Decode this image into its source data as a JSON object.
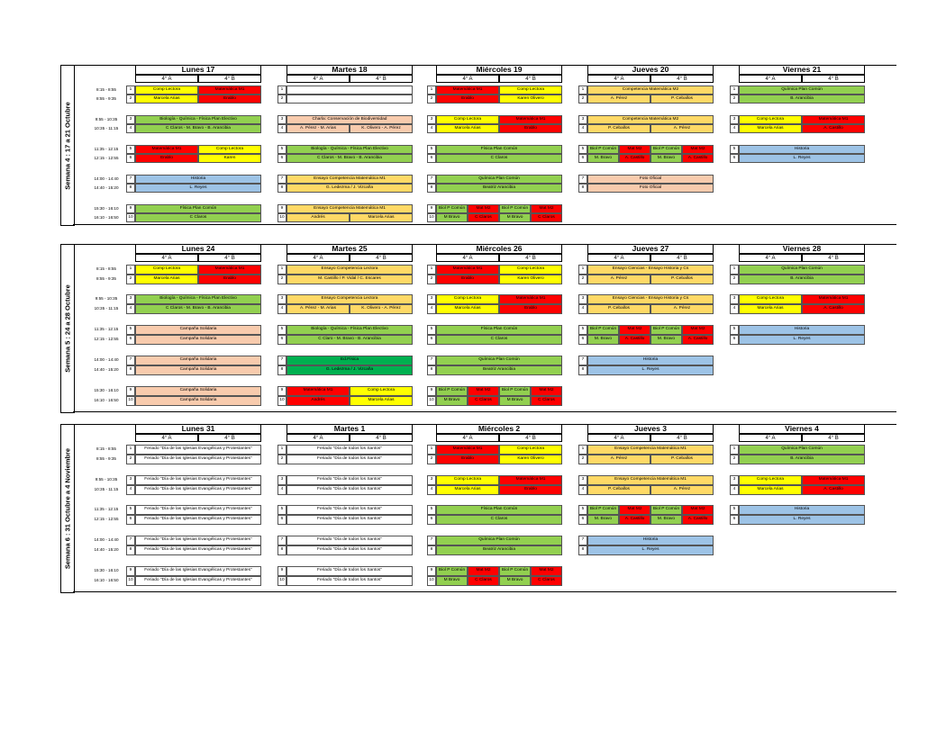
{
  "palette": {
    "yellow": "#ffff00",
    "red": "#ff0000",
    "green": "#92d050",
    "orange": "#ffd966",
    "salmon": "#f8cbad",
    "blue": "#9dc3e6",
    "dark_green": "#00b050"
  },
  "subjects": {
    "comp_lectora": "Comp Lectora",
    "matematica_m1": "Matemática M1",
    "marcela": "Marcela Arias",
    "erabb": "Erablo",
    "karen_olivero": "Karen Olivero",
    "karen": "Karen",
    "biologia_fisica": "Biología - Química - Física Plan Electivo",
    "profs_bio": "C Claros - M. Bravo - B. Arancibia",
    "profs_bio_b": "C Claros - M. Bravo - B. Arancibia",
    "historia": "Historia",
    "l_reyes": "L. Reyes",
    "fisica_pc": "Física Plan Común",
    "c_claros": "C Claros",
    "quimica_pc": "Química Plan Común",
    "beatriz": "Beatriz Arancibia",
    "b_arancibia": "B. Arancibia",
    "charla": "Charla: Conservación de Biodiversidad",
    "a_perez_arias": "A. Pérez - M. Arias",
    "k_olivero_perez": "K. Olivero - A. Pérez",
    "ensayo_m1": "Ensayo Competencia Matemática M1",
    "g_ledezma": "G. Ledezma / J. Vizcaña",
    "andres": "Andrés",
    "marcela_arias": "Marcela Arias",
    "comp_m2": "Competencia Matemática M2",
    "a_perez": "A. Pérez",
    "p_ceballos": "P. Ceballos",
    "biol_pc": "Biol P Común",
    "mat_m2": "Mat M2",
    "m_bravo": "M. Bravo",
    "a_castillo": "A. Castillo",
    "mbravo2": "M Bravo",
    "c_claros2": "C Claros",
    "foto_oficial": "Foto Oficial",
    "a_castillo_short": "A. Castillo",
    "ensayo_lectora": "Ensayo Competencia Lectora",
    "castillo_vidal": "M. Castillo / P. Vidal / C. Escares",
    "ensayo_ciencias": "Ensayo Ciencias - Ensayo Historia y Cs",
    "campana": "Campaña Solidaria",
    "ed_fisica": "Ed.Física",
    "a_perez_arias2": "A. Pérez - M. Arias",
    "k_olivero_perez2": "K. Olivero - A. Pérez",
    "profs_bio2": "C Claro - M. Bravo - B. Arancibia",
    "feriado_iglesias": "Feriado \"Día de las Iglesias Evangélicas y Protestantes\"",
    "feriado_santos": "Feriado \"Día de todos los Santos\"",
    "ensayo_m1_short": "Ensayo Competencia Matemática M1"
  },
  "common": {
    "class_a": "4° A",
    "class_b": "4° B",
    "n1": "1",
    "n2": "2",
    "n3": "3",
    "n4": "4",
    "n5": "5",
    "n6": "6",
    "n7": "7",
    "n8": "8",
    "n9": "9",
    "n10": "10"
  },
  "times": {
    "w1": [
      "8:15 - 8:55",
      "8:55 - 9:35",
      "9:55 - 10:35",
      "10:35 - 11:15",
      "11:35 - 12:15",
      "12:15 - 12:55",
      "14:00 - 14:40",
      "14:40 - 15:20",
      "15:30 - 16:10",
      "16:10 - 16:50"
    ],
    "w2": [
      "8:15 - 8:55",
      "8:55 - 9:35",
      "9:55 - 10:35",
      "10:35 - 11:15",
      "11:35 - 12:15",
      "12:15 - 12:55",
      "14:00 - 14:40",
      "14:40 - 15:20",
      "15:30 - 16:10",
      "16:10 - 16:50"
    ],
    "w3": [
      "8:15 - 8:55",
      "8:55 - 9:35",
      "9:55 - 10:35",
      "10:35 - 11:15",
      "11:35 - 12:15",
      "12:15 - 12:55",
      "14:00 - 14:40",
      "14:40 - 15:20",
      "15:30 - 16:10",
      "16:10 - 16:50"
    ]
  },
  "weeks": [
    {
      "label": "Semana 4 : 17 a 21 Octubre",
      "days": [
        "Lunes 17",
        "Martes 18",
        "Miércoles 19",
        "Jueves 20",
        "Viernes 21"
      ]
    },
    {
      "label": "Semana 5 : 24 a 28 Octubre",
      "days": [
        "Lunes 24",
        "Martes 25",
        "Miércoles 26",
        "Jueves 27",
        "Viernes 28"
      ]
    },
    {
      "label": "Semana 6 : 31 Octubre a 4 Noviembre",
      "days": [
        "Lunes 31",
        "Martes 1",
        "Miércoles 2",
        "Jueves 3",
        "Viernes 4"
      ]
    }
  ]
}
